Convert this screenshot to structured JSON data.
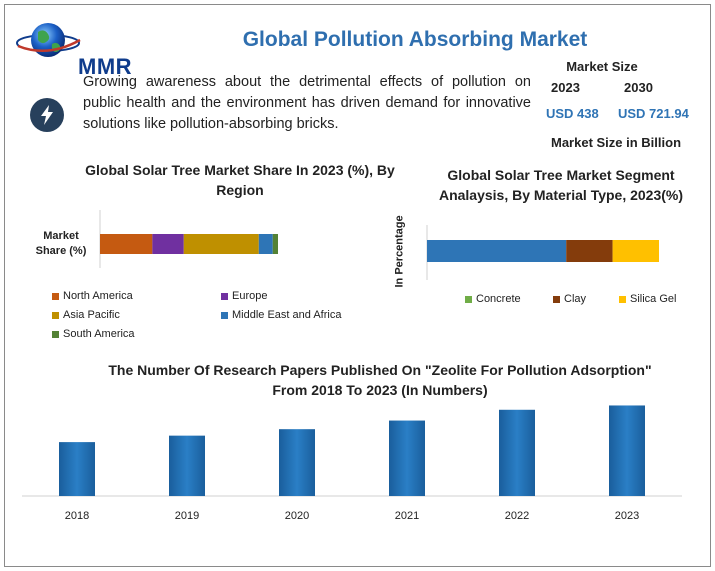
{
  "header": {
    "logo_text": "MMR",
    "title": "Global Pollution Absorbing Market"
  },
  "intro_text": "Growing awareness about the detrimental effects of pollution on public health and the environment has driven demand for innovative solutions like pollution-absorbing bricks.",
  "market_size": {
    "title": "Market Size",
    "year_start": "2023",
    "year_end": "2030",
    "value_start": "USD 438",
    "value_end": "USD 721.94",
    "unit_label": "Market Size in Billion"
  },
  "icons": {
    "logo": "globe-icon",
    "intro": "lightning-bolt-icon"
  },
  "colors": {
    "title_blue": "#2f6faf",
    "north_america": "#c55a11",
    "europe": "#7030a0",
    "asia_pacific": "#bf9000",
    "middle_east_africa": "#2e75b6",
    "south_america": "#548235",
    "concrete": "#70ad47",
    "clay": "#843c0c",
    "silica_gel": "#ffc000",
    "segment_blue": "#2e75b6",
    "bar_blue": "#1f6fb2"
  },
  "chart_data": [
    {
      "type": "bar",
      "orientation": "horizontal",
      "stacked": true,
      "title": "Global Solar Tree Market Share In 2023 (%), By Region",
      "categories": [
        "Market Share (%)"
      ],
      "series": [
        {
          "name": "North America",
          "values": [
            30
          ]
        },
        {
          "name": "Europe",
          "values": [
            18
          ]
        },
        {
          "name": "Asia Pacific",
          "values": [
            43
          ]
        },
        {
          "name": "Middle East and Africa",
          "values": [
            8
          ]
        },
        {
          "name": "South America",
          "values": [
            3
          ]
        }
      ],
      "legend": "bottom",
      "grid": false
    },
    {
      "type": "bar",
      "orientation": "horizontal",
      "stacked": true,
      "title": "Global Solar Tree Market Segment Analaysis, By Material Type, 2023(%)",
      "ylabel": "In Percentage",
      "categories": [
        ""
      ],
      "series": [
        {
          "name": "",
          "values": [
            60
          ]
        },
        {
          "name": "Clay",
          "values": [
            20
          ]
        },
        {
          "name": "Silica Gel",
          "values": [
            20
          ]
        },
        {
          "name": "Concrete",
          "values": [
            0
          ]
        }
      ],
      "legend_order": [
        "Concrete",
        "Clay",
        "Silica Gel"
      ],
      "legend": "bottom",
      "grid": false
    },
    {
      "type": "bar",
      "title": "The Number Of Research Papers Published On \"Zeolite For Pollution Adsorption\" From 2018 To 2023 (In Numbers)",
      "categories": [
        "2018",
        "2019",
        "2020",
        "2021",
        "2022",
        "2023"
      ],
      "values": [
        50,
        56,
        62,
        70,
        80,
        84
      ],
      "ylim": [
        0,
        90
      ],
      "grid": false,
      "legend": "none"
    }
  ]
}
